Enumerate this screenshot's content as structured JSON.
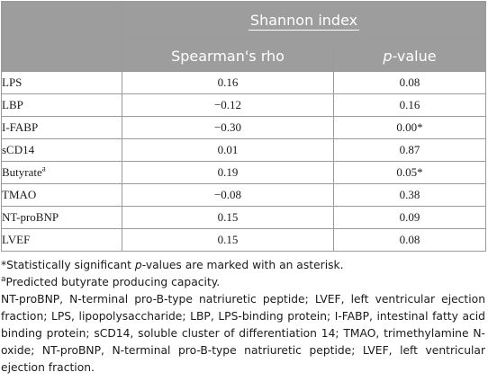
{
  "header": {
    "group": "Shannon index",
    "col_rho": "Spearman's rho",
    "col_p_italic": "p",
    "col_p_rest": "-value"
  },
  "rows": [
    {
      "label": "LPS",
      "sup": "",
      "rho": "0.16",
      "p": "0.08"
    },
    {
      "label": "LBP",
      "sup": "",
      "rho": "−0.12",
      "p": "0.16"
    },
    {
      "label": "I-FABP",
      "sup": "",
      "rho": "−0.30",
      "p": "0.00*"
    },
    {
      "label": "sCD14",
      "sup": "",
      "rho": "0.01",
      "p": "0.87"
    },
    {
      "label": "Butyrate",
      "sup": "a",
      "rho": "0.19",
      "p": "0.05*"
    },
    {
      "label": "TMAO",
      "sup": "",
      "rho": "−0.08",
      "p": "0.38"
    },
    {
      "label": "NT-proBNP",
      "sup": "",
      "rho": "0.15",
      "p": "0.09"
    },
    {
      "label": "LVEF",
      "sup": "",
      "rho": "0.15",
      "p": "0.08"
    }
  ],
  "notes": {
    "note1_a": "*Statistically significant ",
    "note1_italic": "p",
    "note1_b": "-values are marked with an asterisk.",
    "note2_sup": "a",
    "note2": "Predicted butyrate producing capacity.",
    "abbreviations": "NT-proBNP, N-terminal pro-B-type natriuretic peptide; LVEF, left ventricular ejection fraction; LPS, lipopolysaccharide; LBP, LPS-binding protein; I-FABP, intestinal fatty acid binding protein; sCD14, soluble cluster of differentiation 14; TMAO, trimethylamine N-oxide; NT-proBNP, N-terminal pro-B-type natriuretic peptide; LVEF, left ventricular ejection fraction."
  }
}
